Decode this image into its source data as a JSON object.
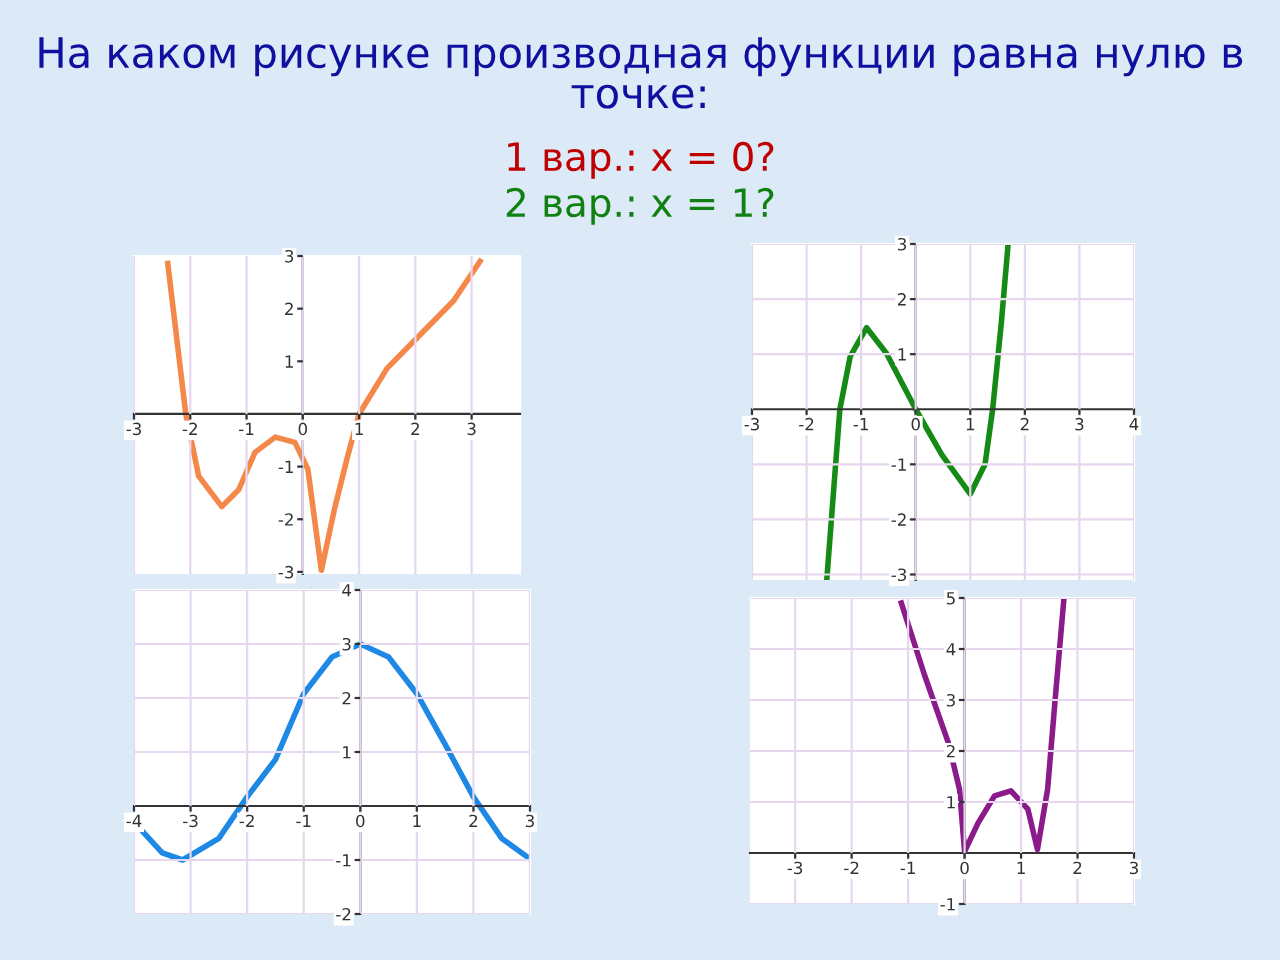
{
  "chart_data": [
    {
      "type": "line",
      "title": "На каком рисунке производная функции равна нулю в точке:",
      "annotations": [
        "1 вар.: x = 0?",
        "2 вар.: x = 1?"
      ],
      "xlim": [
        -3,
        3.86
      ],
      "ylim": [
        -3.04,
        3
      ],
      "xticks": [
        -3,
        -2,
        -1,
        0,
        1,
        2,
        3
      ],
      "yticks": [
        -3,
        -2,
        -1,
        1,
        2,
        3
      ],
      "grid": "x",
      "series": [
        {
          "color": "#f4884a",
          "x": [
            -2.4,
            -2.08,
            -1.85,
            -1.44,
            -1.14,
            -0.85,
            -0.49,
            -0.14,
            0.09,
            0.33,
            0.56,
            0.8,
            1.0,
            1.5,
            2.09,
            2.68,
            3.15
          ],
          "values": [
            2.86,
            0,
            -1.18,
            -1.76,
            -1.44,
            -0.73,
            -0.44,
            -0.54,
            -1.05,
            -2.97,
            -1.82,
            -0.79,
            0,
            0.87,
            1.51,
            2.15,
            2.9
          ]
        }
      ]
    },
    {
      "type": "line",
      "xlim": [
        -3,
        4
      ],
      "ylim": [
        -3.1,
        3.0
      ],
      "xticks": [
        -3,
        -2,
        -1,
        0,
        1,
        2,
        3,
        4
      ],
      "yticks": [
        -3,
        -2,
        -1,
        1,
        2,
        3
      ],
      "grid": true,
      "series": [
        {
          "color": "#168a16",
          "x": [
            -1.63,
            -1.39,
            -1.2,
            -0.9,
            -0.54,
            0,
            0.48,
            1.0,
            1.27,
            1.41,
            1.57,
            1.69
          ],
          "values": [
            -3.1,
            0,
            0.96,
            1.48,
            1.02,
            0,
            -0.83,
            -1.54,
            -1.0,
            0,
            1.58,
            2.96
          ]
        }
      ]
    },
    {
      "type": "line",
      "xlim": [
        -4,
        3
      ],
      "ylim": [
        -2,
        4
      ],
      "xticks": [
        -4,
        -3,
        -2,
        -1,
        0,
        1,
        2,
        3
      ],
      "yticks": [
        -2,
        -1,
        1,
        2,
        3,
        4
      ],
      "grid": true,
      "series": [
        {
          "color": "#1e88e5",
          "x": [
            -4,
            -3.5,
            -3.14,
            -2.5,
            -2,
            -1.5,
            -1,
            -0.5,
            0,
            0.5,
            1,
            1.5,
            2,
            2.5,
            3
          ],
          "values": [
            -0.3,
            -0.87,
            -1,
            -0.6,
            0.17,
            0.86,
            2.08,
            2.76,
            3,
            2.76,
            2.08,
            1.14,
            0.17,
            -0.6,
            -0.98
          ]
        }
      ]
    },
    {
      "type": "line",
      "xlim": [
        -3.8,
        3
      ],
      "ylim": [
        -1,
        5
      ],
      "xticks": [
        -3,
        -2,
        -1,
        0,
        1,
        2,
        3
      ],
      "yticks": [
        -1,
        1,
        2,
        3,
        4,
        5
      ],
      "grid": true,
      "series": [
        {
          "color": "#8b1a8b",
          "x": [
            -1.12,
            -0.71,
            -0.29,
            -0.09,
            0,
            0.24,
            0.53,
            0.82,
            1.12,
            1.29,
            1.47,
            1.62,
            1.76
          ],
          "values": [
            4.9,
            3.49,
            2.17,
            1.25,
            0.03,
            0.59,
            1.12,
            1.22,
            0.86,
            0.07,
            1.25,
            3.22,
            5
          ]
        }
      ]
    }
  ]
}
